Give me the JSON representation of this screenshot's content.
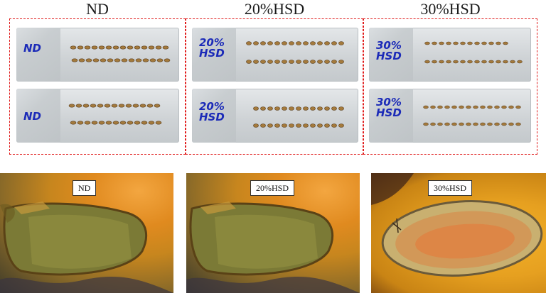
{
  "groups": [
    {
      "title": "ND",
      "label_top": "ND",
      "label_bottom": "ND",
      "photo_label": "ND"
    },
    {
      "title": "20%HSD",
      "label_top": "20% HSD",
      "label_bottom": "20% HSD",
      "photo_label": "20%HSD"
    },
    {
      "title": "30%HSD",
      "label_top": "30% HSD",
      "label_bottom": "30% HSD",
      "photo_label": "30%HSD"
    }
  ],
  "colors": {
    "dashed_border": "#e01b1b",
    "marker_ink": "#1c2bb8",
    "embryo": "#a47a3c",
    "background_orange": "#e08a1f"
  }
}
